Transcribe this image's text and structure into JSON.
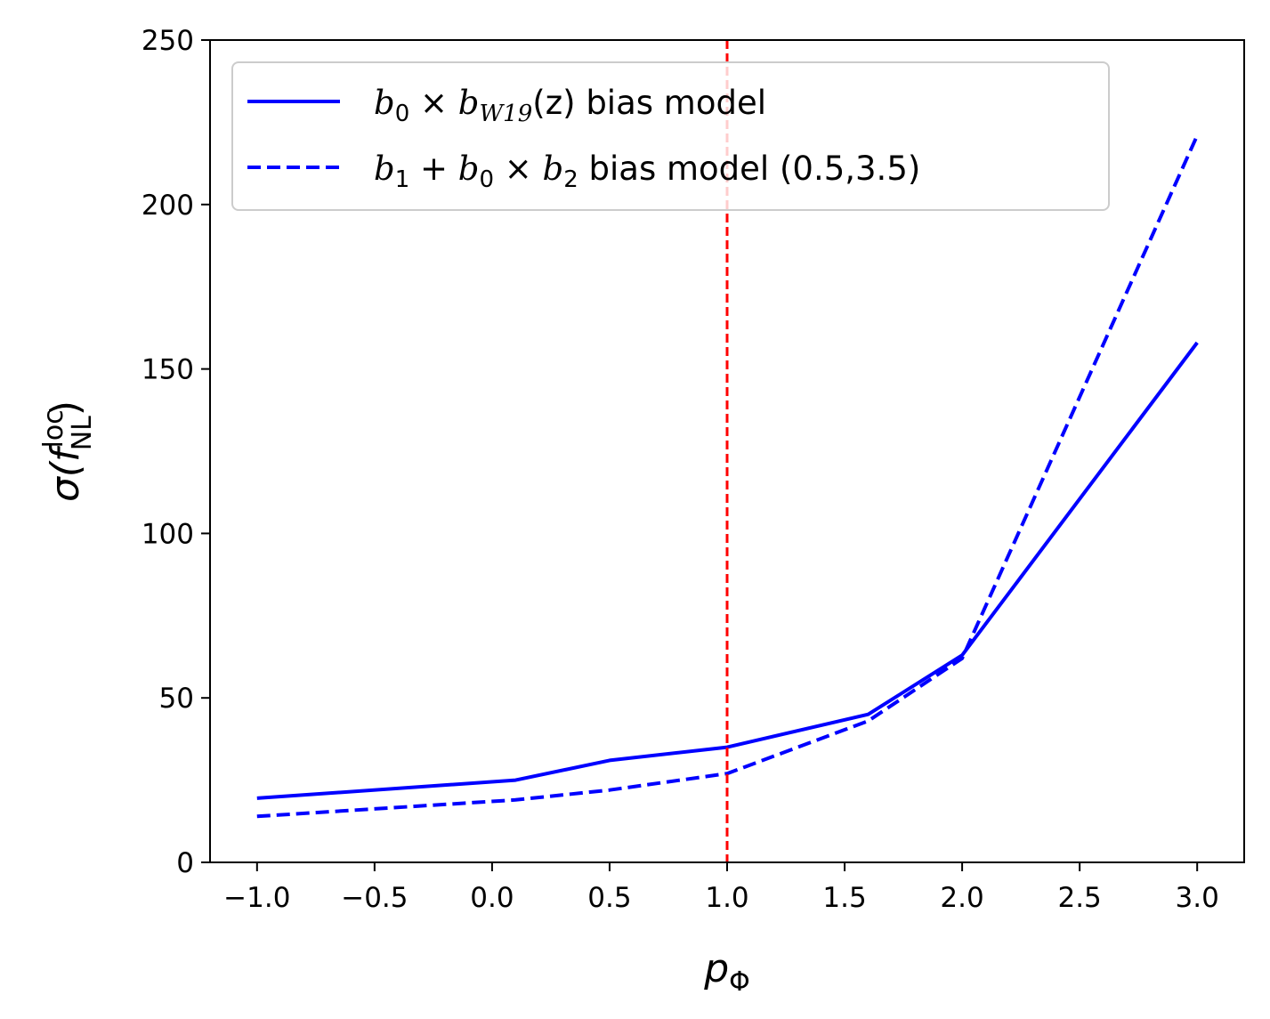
{
  "chart_data": {
    "type": "line",
    "title": "",
    "xlabel_main": "p",
    "xlabel_sub": "Φ",
    "ylabel_main": "σ(f",
    "ylabel_sup": "loc",
    "ylabel_sub": "NL",
    "ylabel_close": ")",
    "xlim": [
      -1.2,
      3.2
    ],
    "ylim": [
      0,
      250
    ],
    "xticks": [
      -1.0,
      -0.5,
      0.0,
      0.5,
      1.0,
      1.5,
      2.0,
      2.5,
      3.0
    ],
    "xtick_labels": [
      "−1.0",
      "−0.5",
      "0.0",
      "0.5",
      "1.0",
      "1.5",
      "2.0",
      "2.5",
      "3.0"
    ],
    "yticks": [
      0,
      50,
      100,
      150,
      200,
      250
    ],
    "ytick_labels": [
      "0",
      "50",
      "100",
      "150",
      "200",
      "250"
    ],
    "grid": false,
    "legend_position": "top-left",
    "reference_line": {
      "x": 1.0,
      "color": "#ff0000",
      "style": "dashed"
    },
    "series": [
      {
        "name": "b0 × bW19(z) bias model",
        "color": "#0000ff",
        "style": "solid",
        "x": [
          -1.0,
          0.1,
          0.5,
          1.0,
          1.6,
          2.0,
          3.0
        ],
        "y": [
          19.5,
          25,
          31,
          35,
          45,
          63,
          158
        ]
      },
      {
        "name": "b1 + b0 × b2 bias model (0.5,3.5)",
        "color": "#0000ff",
        "style": "dashed",
        "x": [
          -1.0,
          0.1,
          0.5,
          1.0,
          1.6,
          2.0,
          3.0
        ],
        "y": [
          14,
          19,
          22,
          27,
          43,
          62,
          221
        ]
      }
    ],
    "legend": [
      {
        "b_a": "b",
        "sub_a": "0",
        "op1": " × ",
        "b_b": "b",
        "sub_b": "W19",
        "arg": "(z)",
        "rest": " bias model"
      },
      {
        "b_a": "b",
        "sub_a": "1",
        "op1": " + ",
        "b_b": "b",
        "sub_b": "0",
        "op2": " × ",
        "b_c": "b",
        "sub_c": "2",
        "rest": " bias model (0.5,3.5)"
      }
    ]
  }
}
